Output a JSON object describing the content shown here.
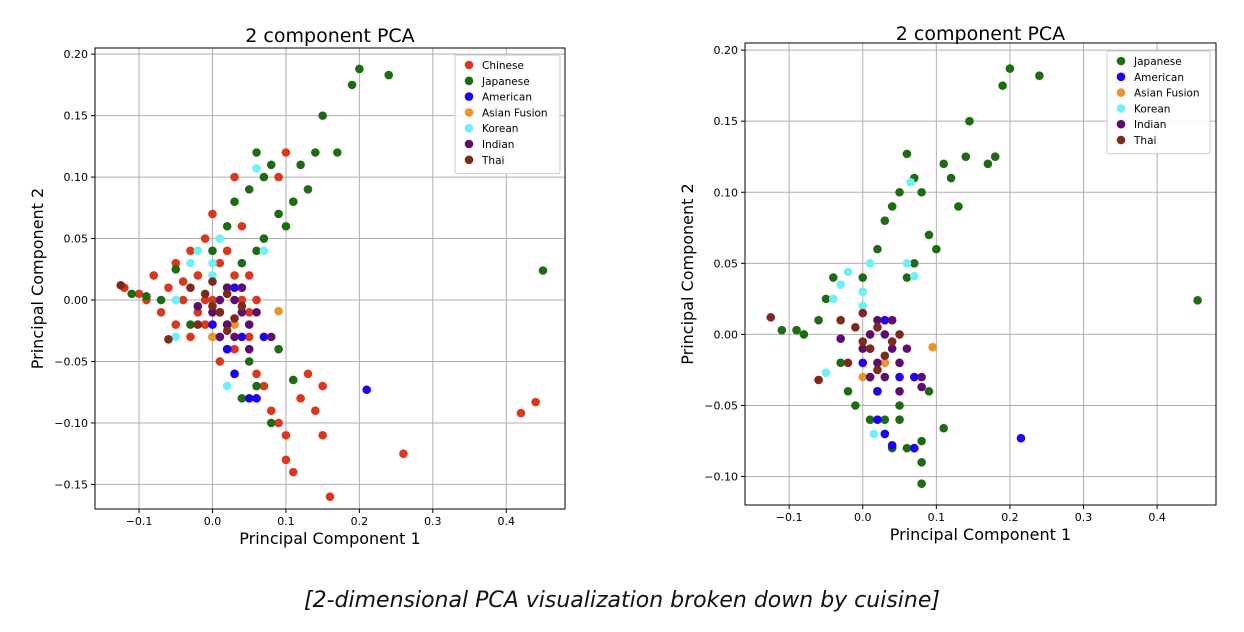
{
  "caption": "[2-dimensional PCA visualization broken down by cuisine]",
  "chart_data": [
    {
      "type": "scatter",
      "title": "2 component PCA",
      "xlabel": "Principal Component 1",
      "ylabel": "Principal Component 2",
      "xlim": [
        -0.16,
        0.48
      ],
      "ylim": [
        -0.17,
        0.205
      ],
      "xticks": [
        -0.1,
        0.0,
        0.1,
        0.2,
        0.3,
        0.4
      ],
      "xtick_labels": [
        "−0.1",
        "0.0",
        "0.1",
        "0.2",
        "0.3",
        "0.4"
      ],
      "yticks": [
        -0.15,
        -0.1,
        -0.05,
        0.0,
        0.05,
        0.1,
        0.15,
        0.2
      ],
      "ytick_labels": [
        "−0.15",
        "−0.10",
        "−0.05",
        "0.00",
        "0.05",
        "0.10",
        "0.15",
        "0.20"
      ],
      "grid": true,
      "legend_position": "top-right",
      "series": [
        {
          "name": "Chinese",
          "color": "#d9381e",
          "points": [
            [
              -0.12,
              0.01
            ],
            [
              -0.1,
              0.005
            ],
            [
              -0.09,
              0.0
            ],
            [
              -0.08,
              0.02
            ],
            [
              -0.07,
              -0.01
            ],
            [
              -0.06,
              0.01
            ],
            [
              -0.05,
              0.03
            ],
            [
              -0.05,
              -0.02
            ],
            [
              -0.04,
              0.0
            ],
            [
              -0.03,
              0.04
            ],
            [
              -0.03,
              -0.03
            ],
            [
              -0.02,
              0.02
            ],
            [
              -0.02,
              -0.01
            ],
            [
              -0.01,
              0.05
            ],
            [
              -0.01,
              0.0
            ],
            [
              0.0,
              0.07
            ],
            [
              0.0,
              -0.03
            ],
            [
              0.01,
              0.03
            ],
            [
              0.01,
              -0.05
            ],
            [
              0.02,
              0.04
            ],
            [
              0.02,
              -0.02
            ],
            [
              0.03,
              0.02
            ],
            [
              0.03,
              -0.04
            ],
            [
              0.04,
              0.0
            ],
            [
              0.04,
              0.06
            ],
            [
              0.05,
              -0.03
            ],
            [
              0.05,
              0.02
            ],
            [
              0.06,
              -0.06
            ],
            [
              0.07,
              -0.07
            ],
            [
              0.08,
              -0.09
            ],
            [
              0.09,
              -0.1
            ],
            [
              0.1,
              -0.11
            ],
            [
              0.1,
              -0.13
            ],
            [
              0.11,
              -0.14
            ],
            [
              0.12,
              -0.08
            ],
            [
              0.13,
              -0.06
            ],
            [
              0.14,
              -0.09
            ],
            [
              0.15,
              -0.11
            ],
            [
              0.15,
              -0.07
            ],
            [
              0.16,
              -0.16
            ],
            [
              0.1,
              0.12
            ],
            [
              0.03,
              0.1
            ],
            [
              0.09,
              0.1
            ],
            [
              0.26,
              -0.125
            ],
            [
              0.42,
              -0.092
            ],
            [
              0.44,
              -0.083
            ],
            [
              0.02,
              0.01
            ],
            [
              -0.04,
              0.015
            ],
            [
              0.0,
              0.0
            ],
            [
              -0.01,
              -0.02
            ],
            [
              0.05,
              -0.01
            ],
            [
              0.06,
              0.0
            ]
          ]
        },
        {
          "name": "Japanese",
          "color": "#1f6b14",
          "points": [
            [
              -0.11,
              0.005
            ],
            [
              -0.09,
              0.003
            ],
            [
              -0.07,
              0.0
            ],
            [
              -0.05,
              0.025
            ],
            [
              -0.03,
              -0.02
            ],
            [
              0.0,
              0.04
            ],
            [
              0.02,
              0.06
            ],
            [
              0.03,
              0.08
            ],
            [
              0.05,
              0.09
            ],
            [
              0.06,
              0.12
            ],
            [
              0.07,
              0.1
            ],
            [
              0.08,
              0.11
            ],
            [
              0.09,
              0.07
            ],
            [
              0.1,
              0.06
            ],
            [
              0.11,
              0.08
            ],
            [
              0.12,
              0.11
            ],
            [
              0.13,
              0.09
            ],
            [
              0.14,
              0.12
            ],
            [
              0.15,
              0.15
            ],
            [
              0.17,
              0.12
            ],
            [
              0.19,
              0.175
            ],
            [
              0.2,
              0.188
            ],
            [
              0.24,
              0.183
            ],
            [
              0.45,
              0.024
            ],
            [
              0.03,
              -0.06
            ],
            [
              0.04,
              -0.08
            ],
            [
              0.05,
              -0.05
            ],
            [
              0.06,
              -0.07
            ],
            [
              0.08,
              -0.1
            ],
            [
              0.11,
              -0.065
            ],
            [
              0.09,
              -0.04
            ],
            [
              0.04,
              0.03
            ],
            [
              0.07,
              0.05
            ],
            [
              0.06,
              0.04
            ],
            [
              0.02,
              -0.04
            ],
            [
              0.01,
              -0.03
            ]
          ]
        },
        {
          "name": "American",
          "color": "#2000f0",
          "points": [
            [
              0.0,
              -0.02
            ],
            [
              0.02,
              -0.04
            ],
            [
              0.03,
              -0.06
            ],
            [
              0.05,
              -0.08
            ],
            [
              0.06,
              -0.08
            ],
            [
              0.04,
              -0.03
            ],
            [
              0.01,
              -0.01
            ],
            [
              0.07,
              -0.03
            ],
            [
              0.21,
              -0.073
            ],
            [
              0.03,
              0.01
            ]
          ]
        },
        {
          "name": "Asian Fusion",
          "color": "#e8952a",
          "points": [
            [
              0.09,
              -0.009
            ],
            [
              0.0,
              -0.03
            ],
            [
              0.01,
              0.0
            ],
            [
              0.03,
              -0.02
            ]
          ]
        },
        {
          "name": "Korean",
          "color": "#6ef0f5",
          "points": [
            [
              -0.05,
              0.0
            ],
            [
              -0.03,
              0.03
            ],
            [
              -0.02,
              0.04
            ],
            [
              0.0,
              0.02
            ],
            [
              0.01,
              0.05
            ],
            [
              0.02,
              -0.07
            ],
            [
              0.06,
              0.107
            ],
            [
              0.07,
              0.04
            ],
            [
              -0.05,
              -0.03
            ],
            [
              0.0,
              0.03
            ]
          ]
        },
        {
          "name": "Indian",
          "color": "#5e0d6e",
          "points": [
            [
              0.0,
              -0.01
            ],
            [
              0.01,
              0.0
            ],
            [
              0.02,
              -0.02
            ],
            [
              0.03,
              0.0
            ],
            [
              0.04,
              -0.01
            ],
            [
              0.03,
              -0.03
            ],
            [
              0.05,
              -0.02
            ],
            [
              0.02,
              0.01
            ],
            [
              0.06,
              -0.01
            ],
            [
              0.05,
              -0.04
            ],
            [
              0.08,
              -0.03
            ],
            [
              -0.02,
              -0.005
            ],
            [
              0.01,
              -0.03
            ],
            [
              0.04,
              0.01
            ]
          ]
        },
        {
          "name": "Thai",
          "color": "#7b2a1c",
          "points": [
            [
              -0.125,
              0.012
            ],
            [
              -0.06,
              -0.032
            ],
            [
              0.0,
              -0.005
            ],
            [
              -0.01,
              0.005
            ],
            [
              0.01,
              -0.01
            ],
            [
              0.02,
              0.005
            ],
            [
              0.03,
              -0.015
            ],
            [
              -0.02,
              -0.02
            ],
            [
              0.0,
              0.015
            ],
            [
              0.04,
              -0.005
            ],
            [
              -0.03,
              0.01
            ],
            [
              0.02,
              -0.025
            ]
          ]
        }
      ]
    },
    {
      "type": "scatter",
      "title": "2 component PCA",
      "xlabel": "Principal Component 1",
      "ylabel": "Principal Component 2",
      "xlim": [
        -0.16,
        0.48
      ],
      "ylim": [
        -0.12,
        0.205
      ],
      "xticks": [
        -0.1,
        0.0,
        0.1,
        0.2,
        0.3,
        0.4
      ],
      "xtick_labels": [
        "−0.1",
        "0.0",
        "0.1",
        "0.2",
        "0.3",
        "0.4"
      ],
      "yticks": [
        -0.1,
        -0.05,
        0.0,
        0.05,
        0.1,
        0.15,
        0.2
      ],
      "ytick_labels": [
        "−0.10",
        "−0.05",
        "0.00",
        "0.05",
        "0.10",
        "0.15",
        "0.20"
      ],
      "grid": true,
      "legend_position": "top-right",
      "series": [
        {
          "name": "Japanese",
          "color": "#1f6b14",
          "points": [
            [
              -0.11,
              0.003
            ],
            [
              -0.09,
              0.003
            ],
            [
              -0.08,
              0.0
            ],
            [
              -0.06,
              0.01
            ],
            [
              -0.05,
              0.025
            ],
            [
              -0.04,
              0.04
            ],
            [
              -0.03,
              -0.02
            ],
            [
              -0.02,
              -0.04
            ],
            [
              -0.01,
              -0.05
            ],
            [
              0.0,
              0.04
            ],
            [
              0.01,
              -0.06
            ],
            [
              0.02,
              0.06
            ],
            [
              0.03,
              0.08
            ],
            [
              0.04,
              0.09
            ],
            [
              0.05,
              0.1
            ],
            [
              0.06,
              0.127
            ],
            [
              0.07,
              0.11
            ],
            [
              0.08,
              0.1
            ],
            [
              0.09,
              0.07
            ],
            [
              0.1,
              0.06
            ],
            [
              0.11,
              0.12
            ],
            [
              0.12,
              0.11
            ],
            [
              0.13,
              0.09
            ],
            [
              0.14,
              0.125
            ],
            [
              0.145,
              0.15
            ],
            [
              0.17,
              0.12
            ],
            [
              0.18,
              0.125
            ],
            [
              0.19,
              0.175
            ],
            [
              0.2,
              0.187
            ],
            [
              0.24,
              0.182
            ],
            [
              0.455,
              0.024
            ],
            [
              0.03,
              -0.06
            ],
            [
              0.04,
              -0.08
            ],
            [
              0.05,
              -0.05
            ],
            [
              0.06,
              -0.08
            ],
            [
              0.08,
              -0.105
            ],
            [
              0.08,
              -0.09
            ],
            [
              0.11,
              -0.066
            ],
            [
              0.09,
              -0.04
            ],
            [
              0.07,
              0.05
            ],
            [
              0.06,
              0.04
            ],
            [
              0.02,
              -0.04
            ],
            [
              0.01,
              -0.03
            ],
            [
              0.05,
              -0.06
            ],
            [
              0.07,
              -0.08
            ],
            [
              0.08,
              -0.075
            ]
          ]
        },
        {
          "name": "American",
          "color": "#2000f0",
          "points": [
            [
              0.0,
              -0.02
            ],
            [
              0.02,
              -0.04
            ],
            [
              0.03,
              -0.07
            ],
            [
              0.04,
              -0.078
            ],
            [
              0.07,
              -0.08
            ],
            [
              0.05,
              -0.03
            ],
            [
              0.01,
              -0.01
            ],
            [
              0.07,
              -0.03
            ],
            [
              0.215,
              -0.073
            ],
            [
              0.03,
              0.01
            ],
            [
              0.02,
              -0.06
            ]
          ]
        },
        {
          "name": "Asian Fusion",
          "color": "#e8952a",
          "points": [
            [
              0.095,
              -0.009
            ],
            [
              0.0,
              -0.03
            ],
            [
              0.01,
              0.0
            ],
            [
              0.03,
              -0.02
            ]
          ]
        },
        {
          "name": "Korean",
          "color": "#6ef0f5",
          "points": [
            [
              -0.05,
              -0.027
            ],
            [
              -0.03,
              0.035
            ],
            [
              -0.02,
              0.044
            ],
            [
              0.0,
              0.02
            ],
            [
              0.01,
              0.05
            ],
            [
              0.015,
              -0.07
            ],
            [
              0.065,
              0.107
            ],
            [
              0.07,
              0.041
            ],
            [
              -0.04,
              0.025
            ],
            [
              0.0,
              0.03
            ],
            [
              0.06,
              0.05
            ]
          ]
        },
        {
          "name": "Indian",
          "color": "#5e0d6e",
          "points": [
            [
              -0.03,
              -0.003
            ],
            [
              0.0,
              -0.01
            ],
            [
              0.01,
              0.0
            ],
            [
              0.02,
              -0.02
            ],
            [
              0.03,
              0.0
            ],
            [
              0.04,
              -0.01
            ],
            [
              0.03,
              -0.03
            ],
            [
              0.05,
              -0.02
            ],
            [
              0.02,
              0.01
            ],
            [
              0.06,
              -0.01
            ],
            [
              0.05,
              -0.04
            ],
            [
              0.08,
              -0.03
            ],
            [
              0.08,
              -0.037
            ],
            [
              0.01,
              -0.03
            ],
            [
              0.04,
              0.01
            ]
          ]
        },
        {
          "name": "Thai",
          "color": "#7b2a1c",
          "points": [
            [
              -0.125,
              0.012
            ],
            [
              -0.06,
              -0.032
            ],
            [
              0.0,
              -0.005
            ],
            [
              -0.01,
              0.005
            ],
            [
              0.01,
              -0.01
            ],
            [
              0.02,
              0.005
            ],
            [
              0.03,
              -0.015
            ],
            [
              -0.02,
              -0.02
            ],
            [
              0.0,
              0.015
            ],
            [
              0.04,
              -0.005
            ],
            [
              -0.03,
              0.01
            ],
            [
              0.02,
              -0.025
            ],
            [
              0.05,
              0.0
            ]
          ]
        }
      ]
    }
  ]
}
